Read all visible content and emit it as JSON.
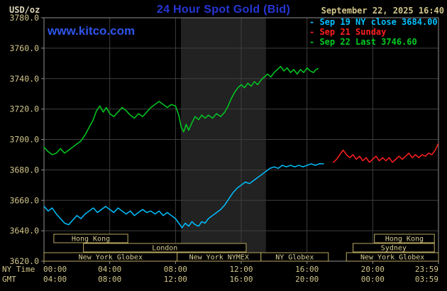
{
  "header": {
    "unit_label": "USD/oz",
    "title": "24 Hour Spot Gold (Bid)",
    "datetime": "September 22, 2025 16:40",
    "watermark": "www.kitco.com"
  },
  "legend": {
    "bullet": "-",
    "items": [
      {
        "label": "Sep 19 NY close 3684.00",
        "color": "#00c0ff"
      },
      {
        "label": "Sep 21 Sunday",
        "color": "#ff1f1f"
      },
      {
        "label": "Sep 22 Last 3746.60",
        "color": "#00cc22"
      }
    ]
  },
  "axes": {
    "ny_time_label": "NY Time",
    "gmt_label": "GMT",
    "x_ticks_ny": [
      "00:00",
      "04:00",
      "08:00",
      "12:00",
      "16:00",
      "20:00",
      "23:59"
    ],
    "x_ticks_gmt": [
      "04:00",
      "08:00",
      "12:00",
      "16:00",
      "20:00",
      "00:00",
      "03:59"
    ],
    "x_tick_hours": [
      0,
      4,
      8,
      12,
      16,
      20,
      24
    ],
    "y_ticks": [
      "3780.0",
      "3760.0",
      "3740.0",
      "3720.0",
      "3700.0",
      "3680.0",
      "3660.0",
      "3640.0",
      "3620.0"
    ],
    "y_tick_values": [
      3780,
      3760,
      3740,
      3720,
      3700,
      3680,
      3660,
      3640,
      3620
    ]
  },
  "sessions": [
    {
      "label": "Hong Kong",
      "row": 0,
      "start": 0.6,
      "end": 5.1
    },
    {
      "label": "Hong Kong",
      "row": 0,
      "start": 20.1,
      "end": 23.75
    },
    {
      "label": "London",
      "row": 1,
      "start": 2.4,
      "end": 12.3
    },
    {
      "label": "Sydney",
      "row": 1,
      "start": 18.8,
      "end": 23.75
    },
    {
      "label": "New York Globex",
      "row": 2,
      "start": 0.0,
      "end": 8.1
    },
    {
      "label": "New York NYMEX",
      "row": 2,
      "start": 8.1,
      "end": 13.2
    },
    {
      "label": "NY Globex",
      "row": 2,
      "start": 13.2,
      "end": 17.3
    },
    {
      "label": "New York Globex",
      "row": 2,
      "start": 18.4,
      "end": 24.0
    }
  ],
  "colors": {
    "background": "#000000",
    "title": "#2636d6",
    "watermark": "#2e55ea",
    "unit_text": "#ddd6b8",
    "axis_text": "#d2c68a",
    "session_text": "#d8cd93",
    "session_border": "#b9a95f",
    "grid": "#3f3f3f",
    "border": "#8f8f8f",
    "band": "#222222"
  },
  "chart_data": {
    "type": "line",
    "title": "24 Hour Spot Gold (Bid)",
    "ylabel": "USD/oz",
    "xlabel": "NY Time (hours 0-24)",
    "ylim": [
      3620,
      3780
    ],
    "xlim_hours": [
      0,
      24
    ],
    "y_tick_step": 20,
    "grid": true,
    "legend_position": "top-right",
    "nymex_band_hours": [
      8.33,
      13.5
    ],
    "series": [
      {
        "id": "sep19",
        "name": "Sep 19 NY close 3684.00",
        "close": 3684.0,
        "color": "#00c0ff",
        "points": [
          [
            0,
            3656
          ],
          [
            0.25,
            3653
          ],
          [
            0.5,
            3655
          ],
          [
            0.75,
            3651
          ],
          [
            1,
            3648
          ],
          [
            1.25,
            3645
          ],
          [
            1.5,
            3644
          ],
          [
            1.75,
            3647
          ],
          [
            2,
            3650
          ],
          [
            2.25,
            3648
          ],
          [
            2.5,
            3651
          ],
          [
            2.75,
            3653
          ],
          [
            3,
            3655
          ],
          [
            3.25,
            3652
          ],
          [
            3.5,
            3654
          ],
          [
            3.75,
            3656
          ],
          [
            4,
            3654
          ],
          [
            4.25,
            3652
          ],
          [
            4.5,
            3655
          ],
          [
            4.75,
            3653
          ],
          [
            5,
            3651
          ],
          [
            5.25,
            3653
          ],
          [
            5.5,
            3650
          ],
          [
            5.75,
            3652
          ],
          [
            6,
            3654
          ],
          [
            6.25,
            3652
          ],
          [
            6.5,
            3653
          ],
          [
            6.75,
            3651
          ],
          [
            7,
            3653
          ],
          [
            7.25,
            3650
          ],
          [
            7.5,
            3652
          ],
          [
            7.75,
            3650
          ],
          [
            8,
            3648
          ],
          [
            8.2,
            3645
          ],
          [
            8.4,
            3642
          ],
          [
            8.6,
            3645
          ],
          [
            8.8,
            3643
          ],
          [
            9,
            3646
          ],
          [
            9.2,
            3644
          ],
          [
            9.4,
            3643
          ],
          [
            9.6,
            3646
          ],
          [
            9.8,
            3645
          ],
          [
            10,
            3648
          ],
          [
            10.25,
            3650
          ],
          [
            10.5,
            3652
          ],
          [
            10.75,
            3654
          ],
          [
            11,
            3657
          ],
          [
            11.25,
            3661
          ],
          [
            11.5,
            3665
          ],
          [
            11.75,
            3668
          ],
          [
            12,
            3670
          ],
          [
            12.25,
            3672
          ],
          [
            12.5,
            3671
          ],
          [
            12.75,
            3673
          ],
          [
            13,
            3675
          ],
          [
            13.25,
            3677
          ],
          [
            13.5,
            3679
          ],
          [
            13.75,
            3681
          ],
          [
            14,
            3682
          ],
          [
            14.25,
            3681
          ],
          [
            14.5,
            3683
          ],
          [
            14.75,
            3682
          ],
          [
            15,
            3683
          ],
          [
            15.25,
            3682
          ],
          [
            15.5,
            3683
          ],
          [
            15.75,
            3682
          ],
          [
            16,
            3683
          ],
          [
            16.25,
            3684
          ],
          [
            16.5,
            3683
          ],
          [
            16.75,
            3684
          ],
          [
            17,
            3684
          ]
        ]
      },
      {
        "id": "sep21",
        "name": "Sep 21 Sunday",
        "color": "#ff1f1f",
        "points": [
          [
            17.6,
            3685
          ],
          [
            17.8,
            3687
          ],
          [
            18,
            3690
          ],
          [
            18.2,
            3693
          ],
          [
            18.4,
            3690
          ],
          [
            18.6,
            3688
          ],
          [
            18.8,
            3690
          ],
          [
            19,
            3687
          ],
          [
            19.2,
            3689
          ],
          [
            19.4,
            3686
          ],
          [
            19.6,
            3688
          ],
          [
            19.8,
            3685
          ],
          [
            20,
            3687
          ],
          [
            20.2,
            3689
          ],
          [
            20.4,
            3686
          ],
          [
            20.6,
            3688
          ],
          [
            20.8,
            3686
          ],
          [
            21,
            3688
          ],
          [
            21.2,
            3685
          ],
          [
            21.4,
            3687
          ],
          [
            21.6,
            3689
          ],
          [
            21.8,
            3687
          ],
          [
            22,
            3689
          ],
          [
            22.2,
            3691
          ],
          [
            22.4,
            3688
          ],
          [
            22.6,
            3690
          ],
          [
            22.8,
            3688
          ],
          [
            23,
            3690
          ],
          [
            23.2,
            3689
          ],
          [
            23.4,
            3691
          ],
          [
            23.6,
            3690
          ],
          [
            23.8,
            3693
          ],
          [
            23.98,
            3697
          ]
        ]
      },
      {
        "id": "sep22",
        "name": "Sep 22 Last 3746.60",
        "last": 3746.6,
        "color": "#00cc22",
        "points": [
          [
            0,
            3695
          ],
          [
            0.25,
            3692
          ],
          [
            0.5,
            3690
          ],
          [
            0.75,
            3691
          ],
          [
            1,
            3694
          ],
          [
            1.25,
            3691
          ],
          [
            1.5,
            3693
          ],
          [
            1.75,
            3695
          ],
          [
            2,
            3697
          ],
          [
            2.25,
            3699
          ],
          [
            2.5,
            3703
          ],
          [
            2.75,
            3708
          ],
          [
            3,
            3713
          ],
          [
            3.2,
            3719
          ],
          [
            3.4,
            3722
          ],
          [
            3.6,
            3718
          ],
          [
            3.8,
            3721
          ],
          [
            4,
            3717
          ],
          [
            4.25,
            3715
          ],
          [
            4.5,
            3718
          ],
          [
            4.75,
            3721
          ],
          [
            5,
            3719
          ],
          [
            5.25,
            3716
          ],
          [
            5.5,
            3714
          ],
          [
            5.75,
            3717
          ],
          [
            6,
            3715
          ],
          [
            6.25,
            3718
          ],
          [
            6.5,
            3721
          ],
          [
            6.75,
            3723
          ],
          [
            7,
            3725
          ],
          [
            7.25,
            3723
          ],
          [
            7.5,
            3721
          ],
          [
            7.75,
            3723
          ],
          [
            8,
            3722
          ],
          [
            8.2,
            3716
          ],
          [
            8.35,
            3708
          ],
          [
            8.5,
            3705
          ],
          [
            8.65,
            3710
          ],
          [
            8.8,
            3706
          ],
          [
            9,
            3711
          ],
          [
            9.2,
            3715
          ],
          [
            9.4,
            3713
          ],
          [
            9.6,
            3716
          ],
          [
            9.8,
            3714
          ],
          [
            10,
            3716
          ],
          [
            10.25,
            3714
          ],
          [
            10.5,
            3717
          ],
          [
            10.75,
            3715
          ],
          [
            11,
            3718
          ],
          [
            11.2,
            3722
          ],
          [
            11.4,
            3727
          ],
          [
            11.6,
            3731
          ],
          [
            11.8,
            3734
          ],
          [
            12,
            3736
          ],
          [
            12.2,
            3734
          ],
          [
            12.4,
            3737
          ],
          [
            12.6,
            3735
          ],
          [
            12.8,
            3738
          ],
          [
            13,
            3736
          ],
          [
            13.2,
            3739
          ],
          [
            13.4,
            3741
          ],
          [
            13.6,
            3743
          ],
          [
            13.8,
            3741
          ],
          [
            14,
            3744
          ],
          [
            14.2,
            3746
          ],
          [
            14.4,
            3748
          ],
          [
            14.6,
            3745
          ],
          [
            14.8,
            3747
          ],
          [
            15,
            3744
          ],
          [
            15.2,
            3746
          ],
          [
            15.4,
            3743
          ],
          [
            15.6,
            3746
          ],
          [
            15.8,
            3744
          ],
          [
            16,
            3747
          ],
          [
            16.2,
            3745
          ],
          [
            16.4,
            3744
          ],
          [
            16.55,
            3746
          ],
          [
            16.67,
            3746.6
          ]
        ]
      }
    ]
  }
}
